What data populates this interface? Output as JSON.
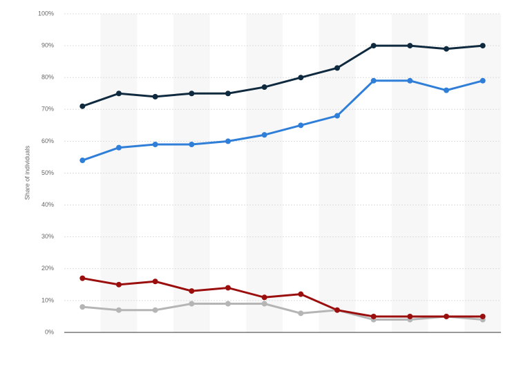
{
  "chart_data": {
    "type": "line",
    "y_label": "Share of individuals",
    "categories": [
      null,
      null,
      null,
      null,
      null,
      null,
      null,
      null,
      null,
      null,
      null,
      null
    ],
    "series": [
      {
        "color": "#0f2a3f",
        "values": [
          71,
          75,
          74,
          75,
          75,
          77,
          80,
          83,
          90,
          90,
          89,
          90
        ]
      },
      {
        "color": "#2f7ed8",
        "values": [
          54,
          58,
          59,
          59,
          60,
          62,
          65,
          68,
          79,
          79,
          76,
          79
        ]
      },
      {
        "color": "#b5b5b5",
        "values": [
          8,
          7,
          7,
          9,
          9,
          9,
          6,
          7,
          4,
          4,
          5,
          4
        ]
      },
      {
        "color": "#9b0e0e",
        "values": [
          17,
          15,
          16,
          13,
          14,
          11,
          12,
          7,
          5,
          5,
          5,
          5
        ]
      }
    ],
    "ylim": [
      0,
      100
    ],
    "yticks": [
      {
        "value": 0,
        "label": "0%"
      },
      {
        "value": 10,
        "label": "10%"
      },
      {
        "value": 20,
        "label": "20%"
      },
      {
        "value": 30,
        "label": "30%"
      },
      {
        "value": 40,
        "label": "40%"
      },
      {
        "value": 50,
        "label": "50%"
      },
      {
        "value": 60,
        "label": "60%"
      },
      {
        "value": 70,
        "label": "70%"
      },
      {
        "value": 80,
        "label": "80%"
      },
      {
        "value": 90,
        "label": "90%"
      },
      {
        "value": 100,
        "label": "100%"
      }
    ],
    "grid": true
  }
}
